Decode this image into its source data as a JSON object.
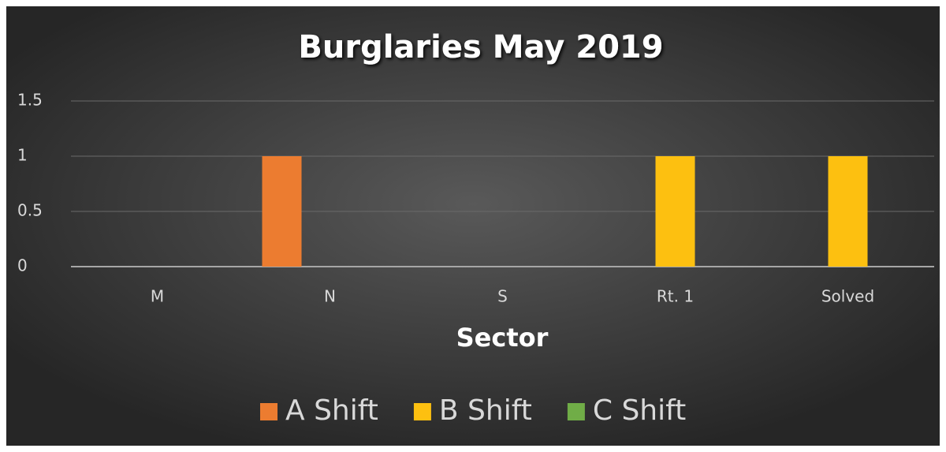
{
  "chart_data": {
    "type": "bar",
    "title": "Burglaries May 2019",
    "x_label": "Sector",
    "categories": [
      "M",
      "N",
      "S",
      "Rt. 1",
      "Solved"
    ],
    "series": [
      {
        "name": "A Shift",
        "color": "#ec7c30",
        "values": [
          0,
          1,
          0,
          0,
          0
        ]
      },
      {
        "name": "B Shift",
        "color": "#fdc010",
        "values": [
          0,
          0,
          0,
          1,
          1
        ]
      },
      {
        "name": "C Shift",
        "color": "#70ad47",
        "values": [
          0,
          0,
          0,
          0,
          0
        ]
      }
    ],
    "ylim": [
      0,
      1.5
    ],
    "yticks": [
      0,
      0.5,
      1,
      1.5
    ],
    "grid": true,
    "legend": "bottom"
  }
}
